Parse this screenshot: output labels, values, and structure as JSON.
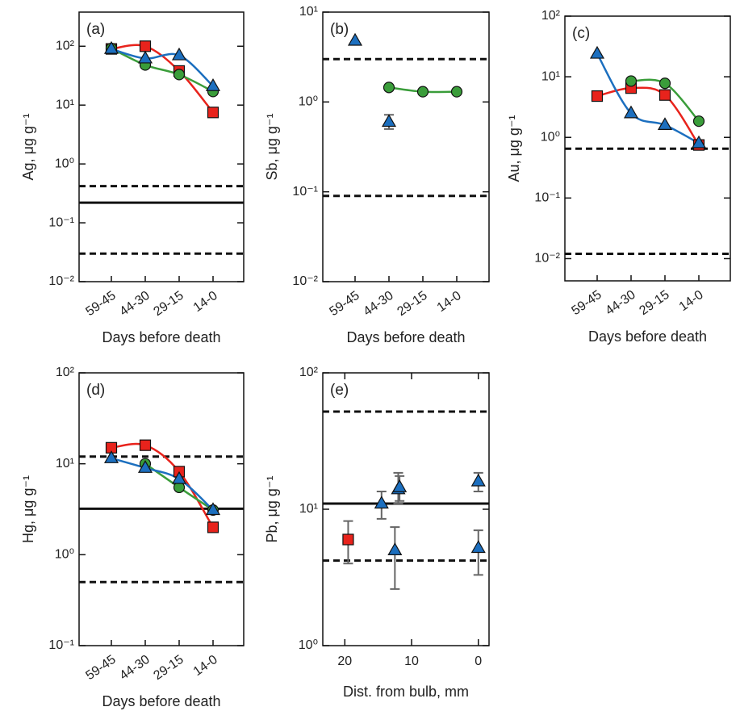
{
  "chart_data": [
    {
      "type": "line",
      "panel_label": "(a)",
      "xlabel": "Days before death",
      "ylabel": "Ag, μg g⁻¹",
      "log_y": true,
      "categories": [
        "59-45",
        "44-30",
        "29-15",
        "14-0"
      ],
      "ylim": [
        0.01,
        380
      ],
      "yticks": [
        {
          "value": 0.01,
          "label": "10⁻²"
        },
        {
          "value": 0.1,
          "label": "10⁻¹"
        },
        {
          "value": 1,
          "label": "10⁰"
        },
        {
          "value": 10,
          "label": "10¹"
        },
        {
          "value": 100,
          "label": "10²"
        }
      ],
      "reference_lines": [
        {
          "value": 0.42,
          "style": "dashed"
        },
        {
          "value": 0.22,
          "style": "solid"
        },
        {
          "value": 0.03,
          "style": "dashed"
        }
      ],
      "series": [
        {
          "color": "#e8231c",
          "marker": "square",
          "smooth_line": true,
          "values": [
            90,
            100,
            38,
            7.5
          ]
        },
        {
          "color": "#3a9d3a",
          "marker": "circle",
          "smooth_line": true,
          "values": [
            92,
            48,
            33,
            17
          ]
        },
        {
          "color": "#1c6fbf",
          "marker": "triangle",
          "smooth_line": true,
          "values": [
            90,
            62,
            70,
            21
          ]
        }
      ]
    },
    {
      "type": "line",
      "panel_label": "(b)",
      "xlabel": "Days before death",
      "ylabel": "Sb, μg g⁻¹",
      "log_y": true,
      "categories": [
        "59-45",
        "44-30",
        "29-15",
        "14-0"
      ],
      "ylim": [
        0.01,
        10
      ],
      "yticks": [
        {
          "value": 0.01,
          "label": "10⁻²"
        },
        {
          "value": 0.1,
          "label": "10⁻¹"
        },
        {
          "value": 1,
          "label": "10⁰"
        },
        {
          "value": 10,
          "label": "10¹"
        }
      ],
      "reference_lines": [
        {
          "value": 3.0,
          "style": "dashed"
        },
        {
          "value": 0.09,
          "style": "dashed"
        }
      ],
      "series": [
        {
          "color": "#3a9d3a",
          "marker": "circle",
          "smooth_line": true,
          "values": [
            null,
            1.45,
            1.3,
            1.3
          ]
        },
        {
          "color": "#1c6fbf",
          "marker": "triangle",
          "smooth_line": false,
          "values": [
            4.8,
            0.6,
            null,
            null
          ],
          "error_low": [
            null,
            0.5,
            null,
            null
          ],
          "error_high": [
            null,
            0.72,
            null,
            null
          ]
        }
      ]
    },
    {
      "type": "line",
      "panel_label": "(c)",
      "xlabel": "Days before death",
      "ylabel": "Au, μg g⁻¹",
      "log_y": true,
      "categories": [
        "59-45",
        "44-30",
        "29-15",
        "14-0"
      ],
      "ylim": [
        0.0043,
        100
      ],
      "yticks": [
        {
          "value": 0.01,
          "label": "10⁻²"
        },
        {
          "value": 0.1,
          "label": "10⁻¹"
        },
        {
          "value": 1,
          "label": "10⁰"
        },
        {
          "value": 10,
          "label": "10¹"
        },
        {
          "value": 100,
          "label": "10²"
        }
      ],
      "reference_lines": [
        {
          "value": 0.65,
          "style": "dashed"
        },
        {
          "value": 0.012,
          "style": "dashed"
        }
      ],
      "series": [
        {
          "color": "#e8231c",
          "marker": "square",
          "smooth_line": true,
          "values": [
            4.8,
            6.5,
            5,
            0.75
          ]
        },
        {
          "color": "#3a9d3a",
          "marker": "circle",
          "smooth_line": true,
          "values": [
            null,
            8.5,
            7.8,
            1.85
          ]
        },
        {
          "color": "#1c6fbf",
          "marker": "triangle",
          "smooth_line": true,
          "values": [
            24,
            2.5,
            1.6,
            0.8
          ]
        }
      ]
    },
    {
      "type": "line",
      "panel_label": "(d)",
      "xlabel": "Days before death",
      "ylabel": "Hg, μg g⁻¹",
      "log_y": true,
      "categories": [
        "59-45",
        "44-30",
        "29-15",
        "14-0"
      ],
      "ylim": [
        0.1,
        100
      ],
      "yticks": [
        {
          "value": 0.1,
          "label": "10⁻¹"
        },
        {
          "value": 1,
          "label": "10⁰"
        },
        {
          "value": 10,
          "label": "10¹"
        },
        {
          "value": 100,
          "label": "10²"
        }
      ],
      "reference_lines": [
        {
          "value": 12,
          "style": "dashed"
        },
        {
          "value": 3.2,
          "style": "solid"
        },
        {
          "value": 0.5,
          "style": "dashed"
        }
      ],
      "series": [
        {
          "color": "#e8231c",
          "marker": "square",
          "smooth_line": true,
          "values": [
            15,
            16,
            8.2,
            2.0
          ]
        },
        {
          "color": "#3a9d3a",
          "marker": "circle",
          "smooth_line": true,
          "values": [
            null,
            10,
            5.5,
            3.1
          ]
        },
        {
          "color": "#1c6fbf",
          "marker": "triangle",
          "smooth_line": true,
          "values": [
            11.5,
            9,
            6.8,
            3.1
          ]
        }
      ]
    },
    {
      "type": "scatter",
      "panel_label": "(e)",
      "xlabel": "Dist. from bulb, mm",
      "ylabel": "Pb, μg g⁻¹",
      "log_y": true,
      "xlim": [
        23.3,
        -1.6
      ],
      "xticks": [
        20,
        10,
        0
      ],
      "ylim": [
        1,
        100
      ],
      "yticks": [
        {
          "value": 1,
          "label": "10⁰"
        },
        {
          "value": 10,
          "label": "10¹"
        },
        {
          "value": 100,
          "label": "10²"
        }
      ],
      "reference_lines": [
        {
          "value": 52,
          "style": "dashed"
        },
        {
          "value": 11,
          "style": "solid"
        },
        {
          "value": 4.2,
          "style": "dashed"
        }
      ],
      "series": [
        {
          "color": "#e8231c",
          "marker": "square",
          "x": [
            19.5
          ],
          "values": [
            6
          ],
          "error_low": [
            4.0
          ],
          "error_high": [
            8.2
          ]
        },
        {
          "color": "#1c6fbf",
          "marker": "triangle",
          "x": [
            14.5,
            12.5,
            12,
            11.8,
            0,
            0
          ],
          "values": [
            11,
            5,
            14,
            14.5,
            16,
            5.2
          ],
          "error_low": [
            8.5,
            2.6,
            11,
            11.5,
            13.5,
            3.3
          ],
          "error_high": [
            13.5,
            7.4,
            18.5,
            17.5,
            18.5,
            7
          ]
        }
      ]
    }
  ]
}
